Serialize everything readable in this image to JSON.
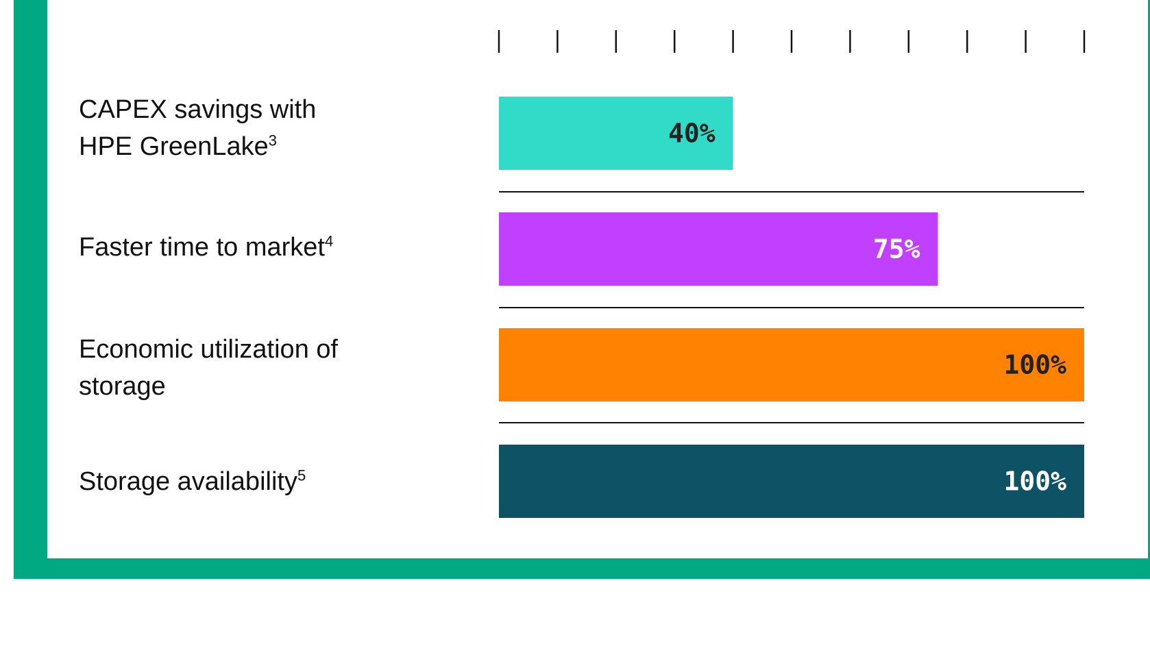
{
  "chart_data": {
    "type": "bar",
    "orientation": "horizontal",
    "categories": [
      "CAPEX savings with HPE GreenLake",
      "Faster time to market",
      "Economic utilization of storage",
      "Storage availability"
    ],
    "footnotes": [
      "3",
      "4",
      "",
      "5"
    ],
    "values": [
      40,
      75,
      100,
      100
    ],
    "value_labels": [
      "40%",
      "75%",
      "100%",
      "100%"
    ],
    "bar_colors": [
      "#32dac8",
      "#c140ff",
      "#ff8300",
      "#0e5265"
    ],
    "label_colors": [
      "#222222",
      "#ffffff",
      "#222222",
      "#ffffff"
    ],
    "xlim": [
      0,
      100
    ],
    "x_ticks": [
      0,
      10,
      20,
      30,
      40,
      50,
      60,
      70,
      80,
      90,
      100
    ],
    "grid": false
  },
  "labels": {
    "row0_line1": "CAPEX savings with",
    "row0_line2": "HPE GreenLake",
    "row0_sup": "3",
    "row1": "Faster time to market",
    "row1_sup": "4",
    "row2_line1": "Economic utilization of",
    "row2_line2": "storage",
    "row3": "Storage availability",
    "row3_sup": "5"
  }
}
